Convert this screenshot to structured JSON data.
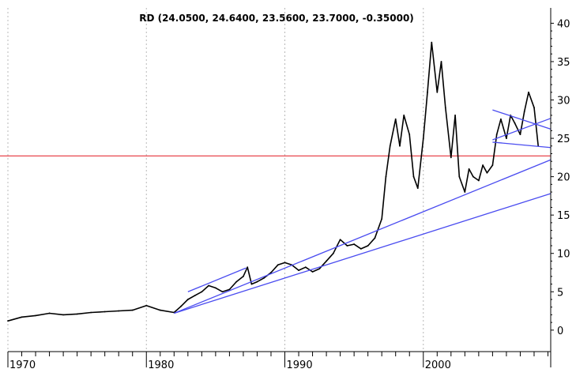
{
  "chart_data": {
    "type": "line",
    "title": "RD (24.0500, 24.6400, 23.5600, 23.7000, -0.35000)",
    "xlabel": "",
    "ylabel": "",
    "xlim": [
      1970,
      2009.2
    ],
    "ylim": [
      -2.8,
      42
    ],
    "x_ticks": [
      1970,
      1980,
      1990,
      2000
    ],
    "x_tick_labels": [
      "1970",
      "1980",
      "1990",
      "2000"
    ],
    "y_ticks": [
      0,
      5,
      10,
      15,
      20,
      25,
      30,
      35,
      40
    ],
    "y_tick_labels": [
      "0",
      "5",
      "10",
      "15",
      "20",
      "25",
      "30",
      "35",
      "40"
    ],
    "grid": true,
    "price_series": {
      "x": [
        1970.0,
        1971.0,
        1972.0,
        1973.0,
        1974.0,
        1975.0,
        1976.0,
        1977.0,
        1978.0,
        1979.0,
        1980.0,
        1981.0,
        1982.0,
        1982.5,
        1983.0,
        1983.5,
        1984.0,
        1984.5,
        1985.0,
        1985.5,
        1986.0,
        1986.5,
        1987.0,
        1987.3,
        1987.6,
        1988.0,
        1988.5,
        1989.0,
        1989.5,
        1990.0,
        1990.5,
        1991.0,
        1991.5,
        1992.0,
        1992.5,
        1993.0,
        1993.5,
        1994.0,
        1994.5,
        1995.0,
        1995.5,
        1996.0,
        1996.5,
        1997.0,
        1997.3,
        1997.6,
        1998.0,
        1998.3,
        1998.6,
        1999.0,
        1999.3,
        1999.6,
        2000.0,
        2000.3,
        2000.6,
        2001.0,
        2001.3,
        2001.6,
        2002.0,
        2002.3,
        2002.6,
        2003.0,
        2003.3,
        2003.6,
        2004.0,
        2004.3,
        2004.6,
        2005.0,
        2005.3,
        2005.6,
        2006.0,
        2006.3,
        2006.6,
        2007.0,
        2007.3,
        2007.6,
        2008.0,
        2008.3
      ],
      "y": [
        1.2,
        1.7,
        1.9,
        2.2,
        2.0,
        2.1,
        2.3,
        2.4,
        2.5,
        2.6,
        3.2,
        2.6,
        2.3,
        3.1,
        4.0,
        4.5,
        5.0,
        5.8,
        5.5,
        5.0,
        5.3,
        6.3,
        7.0,
        8.2,
        6.0,
        6.3,
        6.8,
        7.5,
        8.5,
        8.8,
        8.5,
        7.8,
        8.2,
        7.6,
        8.0,
        9.0,
        10.0,
        11.8,
        11.0,
        11.2,
        10.6,
        11.0,
        12.0,
        14.5,
        20.0,
        24.0,
        27.5,
        24.0,
        28.0,
        25.5,
        20.0,
        18.5,
        25.0,
        31.0,
        37.5,
        31.0,
        35.0,
        29.0,
        22.5,
        28.0,
        20.0,
        18.0,
        21.0,
        20.0,
        19.5,
        21.5,
        20.5,
        21.5,
        25.5,
        27.5,
        25.0,
        28.0,
        27.0,
        25.5,
        28.5,
        31.0,
        29.0,
        24.0
      ]
    },
    "horizontal_line": {
      "y": 22.7,
      "color": "#e8474d"
    },
    "trend_lines": [
      {
        "x": [
          1982.0,
          2009.2
        ],
        "y": [
          2.2,
          22.2
        ],
        "color": "#4a4cf0"
      },
      {
        "x": [
          1982.0,
          2009.2
        ],
        "y": [
          2.2,
          17.8
        ],
        "color": "#4a4cf0"
      },
      {
        "x": [
          1983.0,
          1987.2
        ],
        "y": [
          5.0,
          8.1
        ],
        "color": "#4a4cf0"
      },
      {
        "x": [
          2005.0,
          2009.2
        ],
        "y": [
          28.7,
          26.2
        ],
        "color": "#4a4cf0"
      },
      {
        "x": [
          2005.0,
          2009.2
        ],
        "y": [
          24.5,
          23.8
        ],
        "color": "#4a4cf0"
      },
      {
        "x": [
          2005.0,
          2009.2
        ],
        "y": [
          24.8,
          27.6
        ],
        "color": "#4a4cf0"
      }
    ],
    "colors": {
      "price": "#000000",
      "grid": "#b8b8b8",
      "axis": "#000000"
    }
  }
}
